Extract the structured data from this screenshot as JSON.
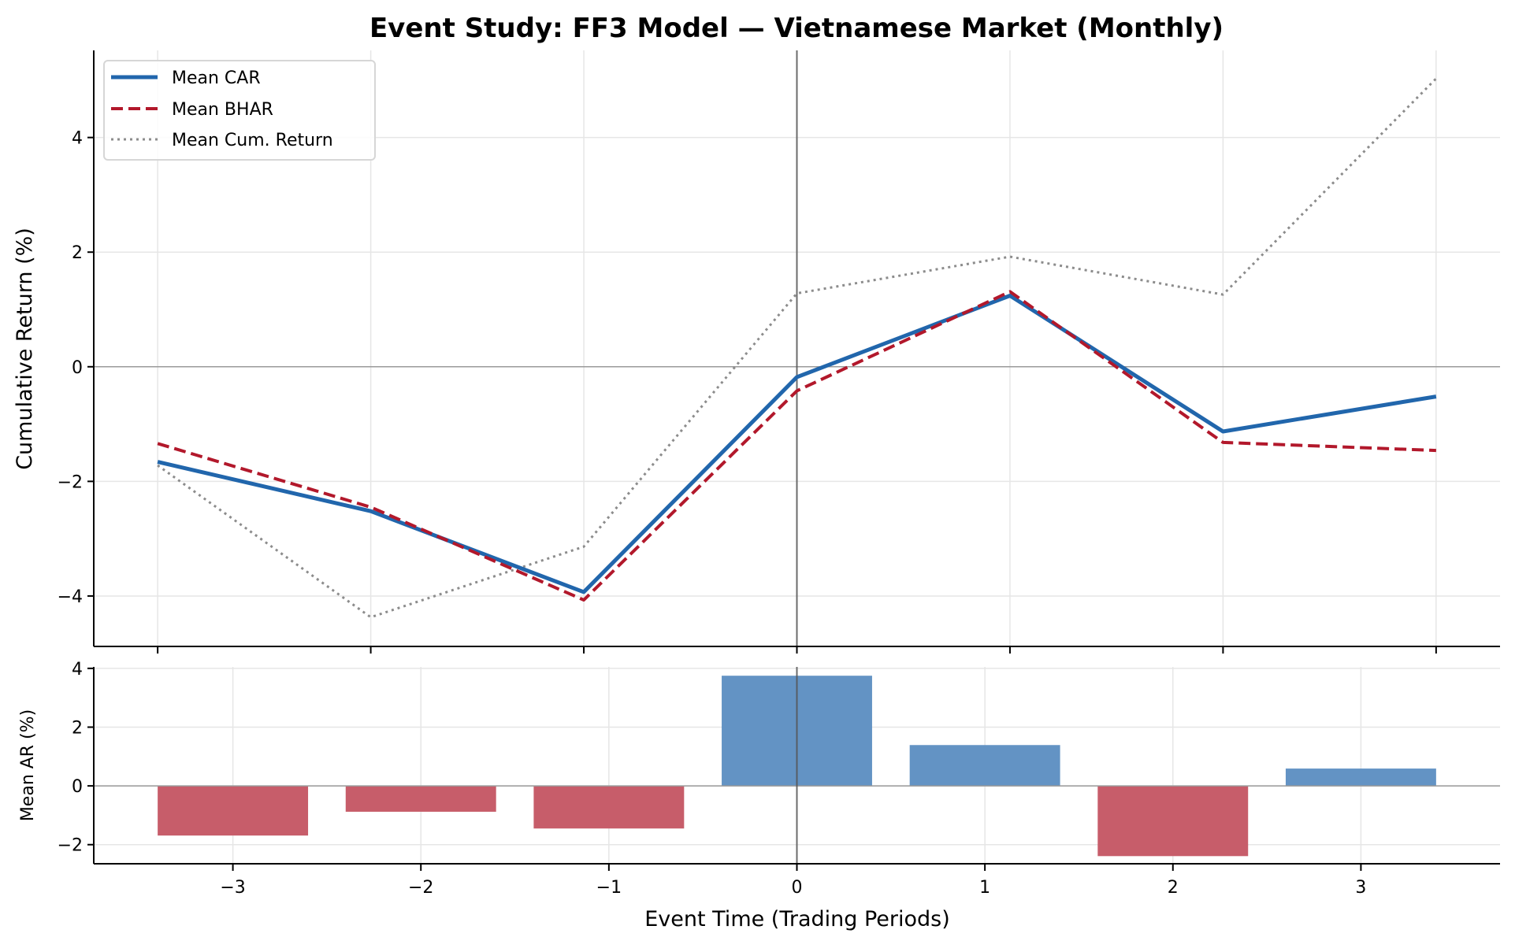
{
  "chart_data": [
    {
      "panel": "top",
      "type": "line",
      "title": "Event Study: FF3 Model — Vietnamese Market (Monthly)",
      "xlabel": "",
      "ylabel": "Cumulative Return (%)",
      "x": [
        -3,
        -2,
        -1,
        0,
        1,
        2,
        3
      ],
      "xlim": [
        -3.3,
        3.3
      ],
      "ylim": [
        -4.88,
        5.52
      ],
      "yticks": [
        -4,
        -2,
        0,
        2,
        4
      ],
      "ytick_labels": [
        "−4",
        "−2",
        "0",
        "2",
        "4"
      ],
      "xticks": [
        -3,
        -2,
        -1,
        0,
        1,
        2,
        3
      ],
      "grid": true,
      "reference_lines": {
        "horizontal_at": 0,
        "vertical_at": 0
      },
      "legend": {
        "placement": "top-left",
        "entries": [
          "Mean CAR",
          "Mean BHAR",
          "Mean Cum. Return"
        ]
      },
      "series": [
        {
          "name": "Mean CAR",
          "style": "solid",
          "color": "#2166ac",
          "values": [
            -1.66,
            -2.52,
            -3.93,
            -0.18,
            1.24,
            -1.13,
            -0.52
          ]
        },
        {
          "name": "Mean BHAR",
          "style": "dashed",
          "color": "#b2182b",
          "values": [
            -1.34,
            -2.45,
            -4.07,
            -0.42,
            1.31,
            -1.32,
            -1.46
          ]
        },
        {
          "name": "Mean Cum. Return",
          "style": "dotted",
          "color": "#8c8c8c",
          "values": [
            -1.72,
            -4.37,
            -3.14,
            1.28,
            1.92,
            1.26,
            5.03
          ]
        }
      ]
    },
    {
      "panel": "bottom",
      "type": "bar",
      "xlabel": "Event Time (Trading Periods)",
      "ylabel": "Mean AR (%)",
      "categories": [
        -3,
        -2,
        -1,
        0,
        1,
        2,
        3
      ],
      "xtick_labels": [
        "−3",
        "−2",
        "−1",
        "0",
        "1",
        "2",
        "3"
      ],
      "values": [
        -1.69,
        -0.88,
        -1.45,
        3.75,
        1.39,
        -2.39,
        0.59
      ],
      "xlim": [
        -3.74,
        3.74
      ],
      "ylim": [
        -2.65,
        4.05
      ],
      "yticks": [
        -2,
        0,
        2,
        4
      ],
      "ytick_labels": [
        "−2",
        "0",
        "2",
        "4"
      ],
      "grid": true,
      "colors": {
        "positive": "#6393c4",
        "negative": "#c75d6a"
      },
      "reference_lines": {
        "horizontal_at": 0,
        "vertical_at": 0
      }
    }
  ]
}
